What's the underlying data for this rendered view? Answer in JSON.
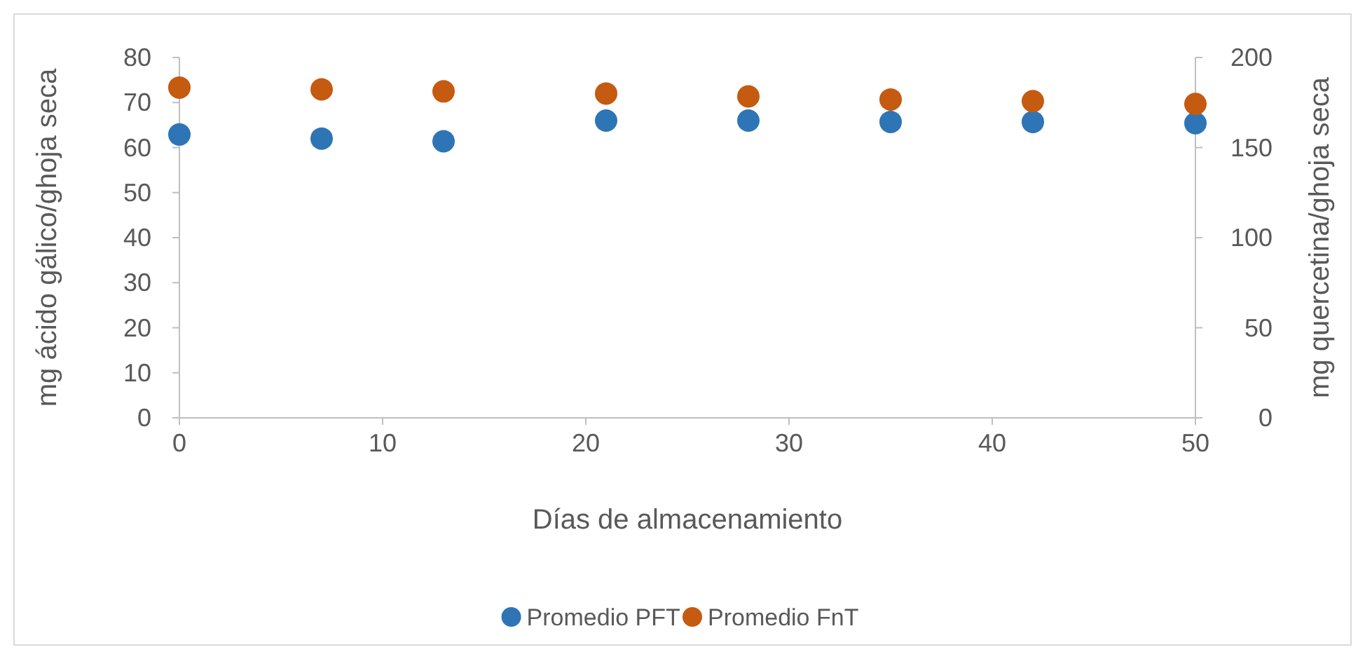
{
  "chart_data": {
    "type": "scatter",
    "xlabel": "Días de almacenamiento",
    "ylabel": "mg ácido gálico/ghoja seca",
    "y2label": "mg quercetina/ghoja seca",
    "x": [
      0,
      7,
      13,
      21,
      28,
      35,
      42,
      50
    ],
    "xlim": [
      0,
      50
    ],
    "xticks": [
      0,
      10,
      20,
      30,
      40,
      50
    ],
    "ylim": [
      0,
      80
    ],
    "yticks": [
      0,
      10,
      20,
      30,
      40,
      50,
      60,
      70,
      80
    ],
    "y2lim": [
      0,
      200
    ],
    "y2ticks": [
      0,
      50,
      100,
      150,
      200
    ],
    "series": [
      {
        "name": "Promedio PFT",
        "color": "#2e75b6",
        "values": [
          62.9,
          62,
          61.4,
          66,
          66,
          65.7,
          65.7,
          65.4
        ]
      },
      {
        "name": "Promedio FnT",
        "color": "#c55a11",
        "axis": "y2",
        "values": [
          183.3,
          182.3,
          181.2,
          180,
          178.4,
          176.7,
          175.8,
          174.2
        ]
      }
    ],
    "marker": "circle",
    "grid": false,
    "legend": "bottom"
  }
}
